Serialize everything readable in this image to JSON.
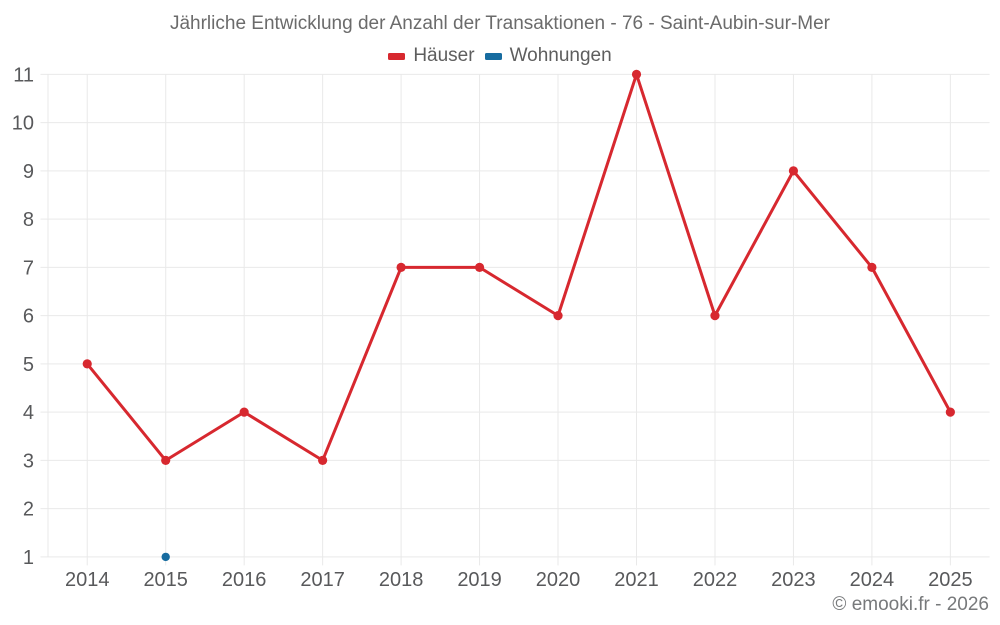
{
  "chart_data": {
    "type": "line",
    "title": "Jährliche Entwicklung der Anzahl der Transaktionen - 76 - Saint-Aubin-sur-Mer",
    "categories": [
      "2014",
      "2015",
      "2016",
      "2017",
      "2018",
      "2019",
      "2020",
      "2021",
      "2022",
      "2023",
      "2024",
      "2025"
    ],
    "series": [
      {
        "name": "Häuser",
        "color": "#d7282f",
        "values": [
          5,
          3,
          4,
          3,
          7,
          7,
          6,
          11,
          6,
          9,
          7,
          4
        ]
      },
      {
        "name": "Wohnungen",
        "color": "#176ca0",
        "values": [
          null,
          1,
          null,
          null,
          null,
          null,
          null,
          null,
          null,
          null,
          null,
          null
        ]
      }
    ],
    "xlabel": "",
    "ylabel": "",
    "ylim": [
      1,
      11
    ],
    "yticks": [
      1,
      2,
      3,
      4,
      5,
      6,
      7,
      8,
      9,
      10,
      11
    ],
    "grid": true,
    "legend_position": "top",
    "colors": {
      "grid_line": "#e9e9e9",
      "axis_label": "#58595b",
      "background": "#ffffff"
    }
  },
  "footer": {
    "copyright": "© emooki.fr - 2026"
  }
}
